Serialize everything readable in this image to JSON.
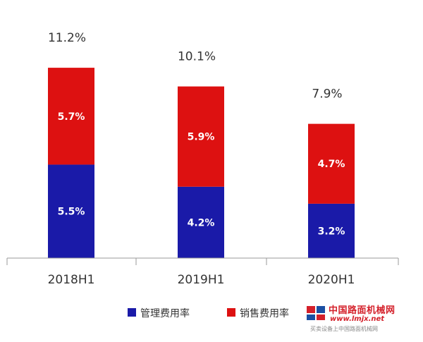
{
  "chart_data": {
    "type": "bar",
    "stacked": true,
    "categories": [
      "2018H1",
      "2019H1",
      "2020H1"
    ],
    "series": [
      {
        "name": "管理费用率",
        "values": [
          5.5,
          4.2,
          3.2
        ],
        "labels": [
          "5.5%",
          "4.2%",
          "3.2%"
        ],
        "color": "#1a1aa8"
      },
      {
        "name": "销售费用率",
        "values": [
          5.7,
          5.9,
          4.7
        ],
        "labels": [
          "5.7%",
          "5.9%",
          "4.7%"
        ],
        "color": "#dd1111"
      }
    ],
    "totals": [
      11.2,
      10.1,
      7.9
    ],
    "total_labels": [
      "11.2%",
      "10.1%",
      "7.9%"
    ],
    "ylim": [
      0,
      12
    ],
    "grid": false,
    "legend_position": "bottom-left"
  },
  "watermark": {
    "site_name": "中国路面机械网",
    "url": "www.lmjx.net",
    "slogan": "买卖设备上中国路面机械网"
  }
}
